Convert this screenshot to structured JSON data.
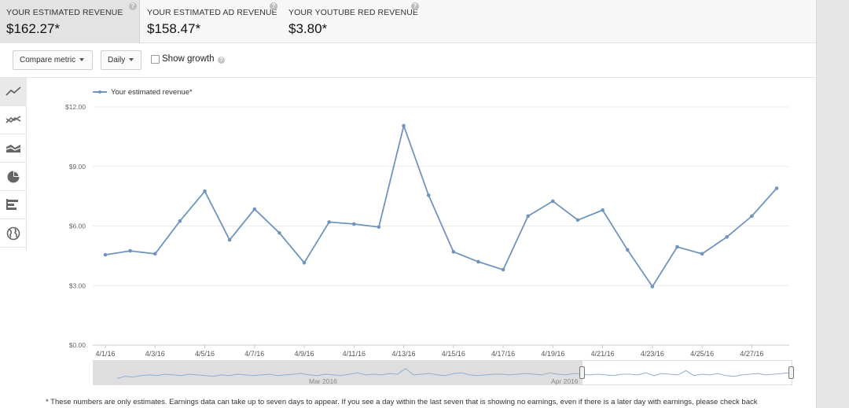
{
  "metric_tabs": [
    {
      "label": "YOUR ESTIMATED REVENUE",
      "value": "$162.27*"
    },
    {
      "label": "YOUR ESTIMATED AD REVENUE",
      "value": "$158.47*"
    },
    {
      "label": "YOUR YOUTUBE RED REVENUE",
      "value": "$3.80*"
    }
  ],
  "controls": {
    "compare_metric": "Compare metric",
    "granularity": "Daily",
    "show_growth": "Show growth",
    "show_growth_checked": false
  },
  "chart_types": [
    "line-chart-icon",
    "multi-line-chart-icon",
    "stacked-area-chart-icon",
    "pie-chart-icon",
    "bar-chart-icon",
    "globe-map-icon"
  ],
  "chart_data": {
    "type": "line",
    "legend": "Your estimated revenue*",
    "legend_position": "top-left",
    "series_color": "#6f94bd",
    "x": [
      "4/1/16",
      "4/2/16",
      "4/3/16",
      "4/4/16",
      "4/5/16",
      "4/6/16",
      "4/7/16",
      "4/8/16",
      "4/9/16",
      "4/10/16",
      "4/11/16",
      "4/12/16",
      "4/13/16",
      "4/14/16",
      "4/15/16",
      "4/16/16",
      "4/17/16",
      "4/18/16",
      "4/19/16",
      "4/20/16",
      "4/21/16",
      "4/22/16",
      "4/23/16",
      "4/24/16",
      "4/25/16",
      "4/26/16",
      "4/27/16",
      "4/28/16"
    ],
    "values": [
      4.55,
      4.75,
      4.6,
      6.25,
      7.75,
      5.3,
      6.85,
      5.65,
      4.15,
      6.2,
      6.1,
      5.95,
      11.05,
      7.55,
      4.7,
      4.2,
      3.8,
      6.5,
      7.25,
      6.3,
      6.8,
      4.8,
      2.95,
      4.95,
      4.6,
      5.45,
      6.5,
      7.9
    ],
    "xtick_labels": [
      "4/1/16",
      "4/3/16",
      "4/5/16",
      "4/7/16",
      "4/9/16",
      "4/11/16",
      "4/13/16",
      "4/15/16",
      "4/17/16",
      "4/19/16",
      "4/21/16",
      "4/23/16",
      "4/25/16",
      "4/27/16"
    ],
    "ytick_labels": [
      "$0.00",
      "$3.00",
      "$6.00",
      "$9.00",
      "$12.00"
    ],
    "ylim": [
      0,
      12
    ],
    "grid": true
  },
  "navigator": {
    "labels": [
      "Mar 2016",
      "Apr 2016"
    ],
    "mini_values": [
      0.2,
      0.35,
      0.3,
      0.4,
      0.45,
      0.4,
      0.5,
      0.45,
      0.4,
      0.5,
      0.45,
      0.4,
      0.35,
      0.45,
      0.4,
      0.5,
      0.45,
      0.4,
      0.45,
      0.5,
      0.4,
      0.45,
      0.5,
      0.55,
      0.45,
      0.4,
      0.5,
      0.45,
      0.4,
      0.5,
      0.6,
      0.45,
      0.5,
      0.45,
      0.55,
      0.5,
      0.9,
      0.45,
      0.5,
      0.55,
      0.45,
      0.4,
      0.55,
      0.6,
      0.45,
      0.4,
      0.45,
      0.5,
      0.5,
      0.45,
      0.5,
      0.55,
      0.5,
      0.45,
      0.6,
      0.5,
      0.45,
      0.55,
      0.5,
      0.45,
      0.5,
      0.45,
      0.4,
      0.5,
      0.5,
      0.45,
      0.6,
      0.4,
      0.55,
      0.5,
      0.45,
      0.75,
      0.4,
      0.5,
      0.45,
      0.55,
      0.4,
      0.35,
      0.45,
      0.5,
      0.55,
      0.45,
      0.5,
      0.55,
      0.6
    ]
  },
  "footnote": "* These numbers are only estimates. Earnings data can take up to seven days to appear. If you see a day within the last seven that is showing no earnings, even if there is a later day with earnings, please check back"
}
